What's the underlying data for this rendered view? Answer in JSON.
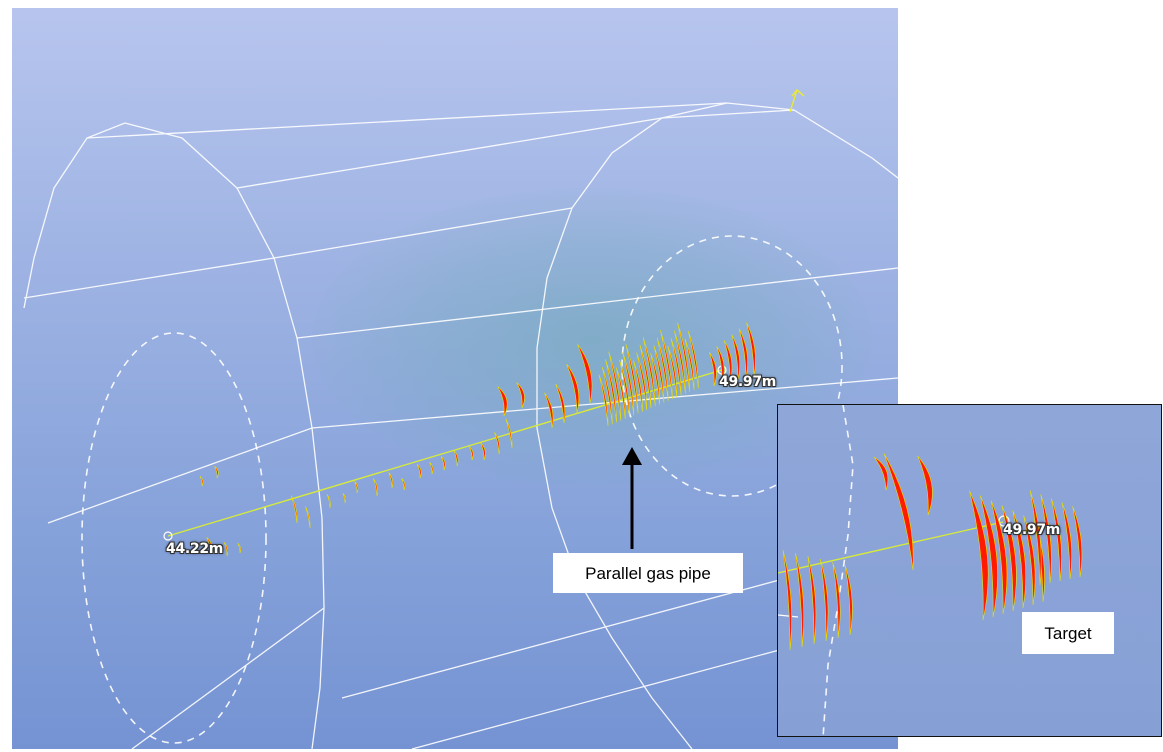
{
  "main_view": {
    "start_distance": "44.22m",
    "end_distance": "49.97m"
  },
  "inset_view": {
    "end_distance": "49.97m"
  },
  "callouts": {
    "gas_pipe": "Parallel gas pipe",
    "target": "Target"
  },
  "colors": {
    "reflection": "#ff1a00",
    "reflection_edge": "#e8e000",
    "trace_line": "#d6ea3a",
    "wireframe": "#ffffff"
  }
}
